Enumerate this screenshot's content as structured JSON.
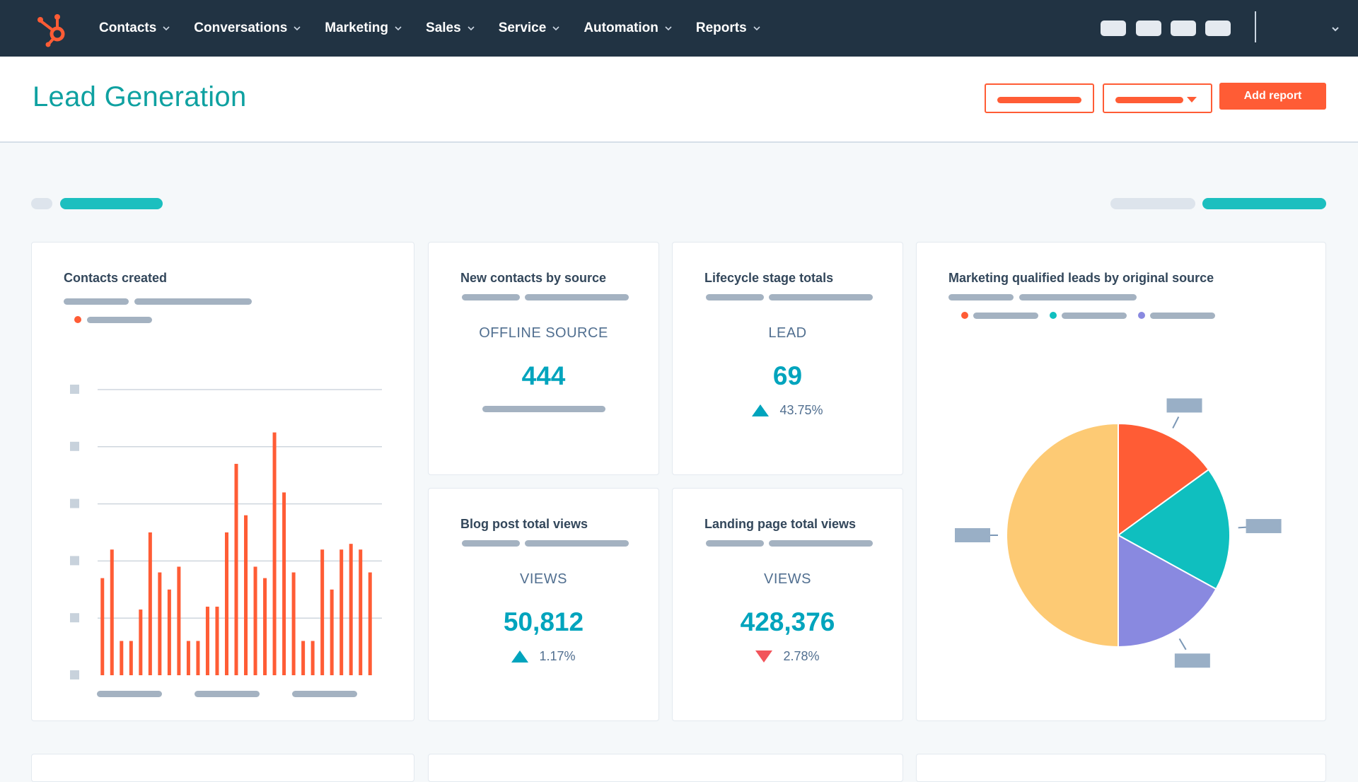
{
  "nav": {
    "items": [
      {
        "label": "Contacts"
      },
      {
        "label": "Conversations"
      },
      {
        "label": "Marketing"
      },
      {
        "label": "Sales"
      },
      {
        "label": "Service"
      },
      {
        "label": "Automation"
      },
      {
        "label": "Reports"
      }
    ]
  },
  "header": {
    "title": "Lead Generation",
    "add_report_label": "Add report"
  },
  "cards": {
    "contacts_created": {
      "title": "Contacts created"
    },
    "new_contacts": {
      "title": "New contacts by source",
      "label": "OFFLINE SOURCE",
      "value": "444"
    },
    "lifecycle": {
      "title": "Lifecycle stage totals",
      "label": "LEAD",
      "value": "69",
      "change": "43.75%",
      "direction": "up"
    },
    "blog": {
      "title": "Blog post total views",
      "label": "VIEWS",
      "value": "50,812",
      "change": "1.17%",
      "direction": "up"
    },
    "landing": {
      "title": "Landing page total views",
      "label": "VIEWS",
      "value": "428,376",
      "change": "2.78%",
      "direction": "down"
    },
    "mql": {
      "title": "Marketing qualified leads by original source"
    }
  },
  "colors": {
    "accent": "#ff5c35",
    "teal": "#00bda5",
    "nav_bg": "#213343",
    "title": "#0fa1a1",
    "pie": [
      "#ff5c35",
      "#0fbfbf",
      "#8989e0",
      "#fdca74"
    ]
  },
  "chart_data": [
    {
      "type": "bar",
      "title": "Contacts created",
      "ylim": [
        0,
        5
      ],
      "values": [
        1.7,
        2.2,
        0.6,
        0.6,
        1.15,
        2.5,
        1.8,
        1.5,
        1.9,
        0.6,
        0.6,
        1.2,
        1.2,
        2.5,
        3.7,
        2.8,
        1.9,
        1.7,
        4.25,
        3.2,
        1.8,
        0.6,
        0.6,
        2.2,
        1.5,
        2.2,
        2.3,
        2.2,
        1.8
      ]
    },
    {
      "type": "pie",
      "title": "Marketing qualified leads by original source",
      "values": [
        15,
        18,
        17,
        50
      ],
      "colors": [
        "#ff5c35",
        "#0fbfbf",
        "#8989e0",
        "#fdca74"
      ]
    }
  ]
}
